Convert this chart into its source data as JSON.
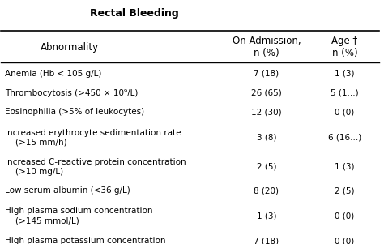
{
  "title_bold": "Rectal Bleeding",
  "col_headers": [
    "Abnormality",
    "On Admission,\nn (%)",
    "Age †\nn (%)"
  ],
  "rows": [
    [
      "Anemia (Hb < 105 g/L)",
      "7 (18)",
      "1 (3)"
    ],
    [
      "Thrombocytosis (>450 × 10⁹/L)",
      "26 (65)",
      "5 (1...)"
    ],
    [
      "Eosinophilia (>5% of leukocytes)",
      "12 (30)",
      "0 (0)"
    ],
    [
      "Increased erythrocyte sedimentation rate\n    (>15 mm/h)",
      "3 (8)",
      "6 (16...)"
    ],
    [
      "Increased C-reactive protein concentration\n    (>10 mg/L)",
      "2 (5)",
      "1 (3)"
    ],
    [
      "Low serum albumin (<36 g/L)",
      "8 (20)",
      "2 (5)"
    ],
    [
      "High plasma sodium concentration\n    (>145 mmol/L)",
      "1 (3)",
      "0 (0)"
    ],
    [
      "High plasma potassium concentration",
      "7 (18)",
      "0 (0)"
    ]
  ],
  "bg_color": "#ffffff",
  "text_color": "#000000",
  "header_fontsize": 8.5,
  "body_fontsize": 7.5,
  "title_fontsize": 9.0
}
